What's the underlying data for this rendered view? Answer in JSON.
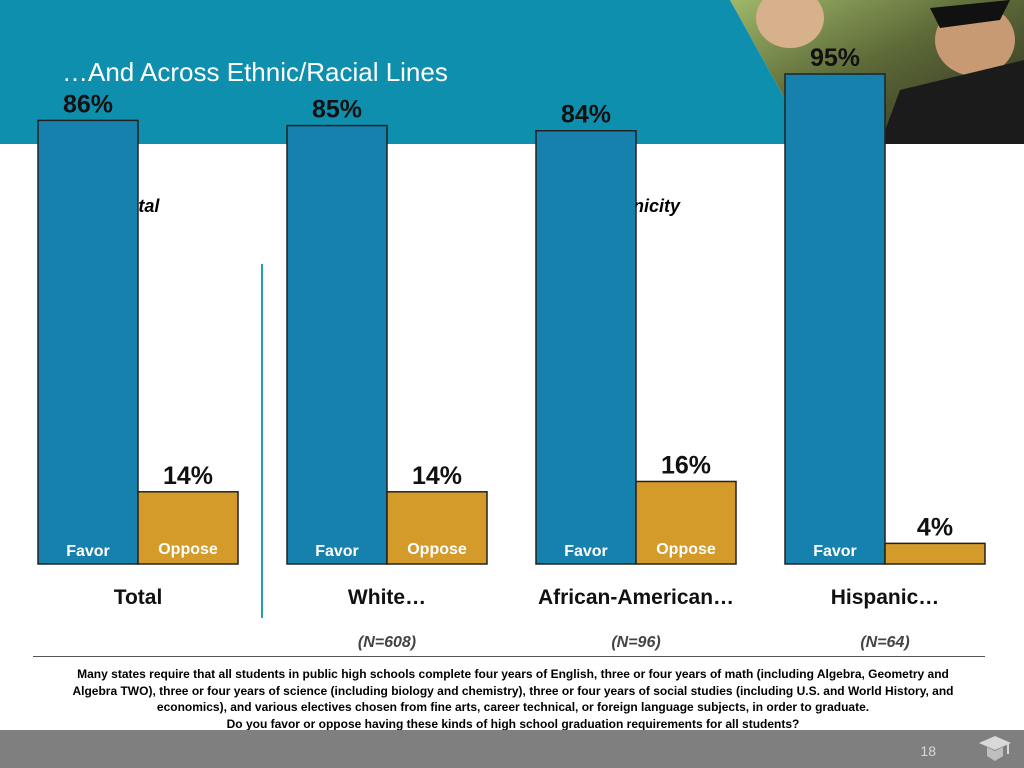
{
  "title": "…And Across Ethnic/Racial Lines",
  "labels": {
    "total_section": "Total",
    "ethnicity_section": "By Ethnicity"
  },
  "colors": {
    "header": "#0f8fae",
    "favor": "#1681ad",
    "oppose": "#d49a2a",
    "divider": "#2aa0a8"
  },
  "chart_data": {
    "type": "bar",
    "categories": [
      "Total",
      "White…",
      "African-American…",
      "Hispanic…"
    ],
    "sample_sizes": [
      "",
      "(N=608)",
      "(N=96)",
      "(N=64)"
    ],
    "series": [
      {
        "name": "Favor",
        "values": [
          86,
          85,
          84,
          95
        ]
      },
      {
        "name": "Oppose",
        "values": [
          14,
          14,
          16,
          4
        ]
      }
    ],
    "value_labels": {
      "Favor": [
        "86%",
        "85%",
        "84%",
        "95%"
      ],
      "Oppose": [
        "14%",
        "14%",
        "16%",
        "4%"
      ]
    },
    "bar_text": {
      "Favor": [
        "Favor",
        "Favor",
        "Favor",
        "Favor"
      ],
      "Oppose": [
        "Oppose",
        "Oppose",
        "Oppose",
        ""
      ]
    },
    "ylim": [
      0,
      100
    ]
  },
  "question": {
    "line1": "Many states require that all students in public high schools complete four years of English, three or four years of math (including Algebra, Geometry and",
    "line2": "Algebra TWO), three or four years of science (including biology and chemistry), three or four years of social studies (including U.S. and World History, and",
    "line3": "economics), and various electives chosen from fine arts, career technical, or foreign language subjects, in order to graduate.",
    "line4": "Do you favor or oppose having these kinds of high school graduation requirements for all students?"
  },
  "footer": {
    "page_number": "18",
    "icon": "graduation-cap-icon"
  }
}
